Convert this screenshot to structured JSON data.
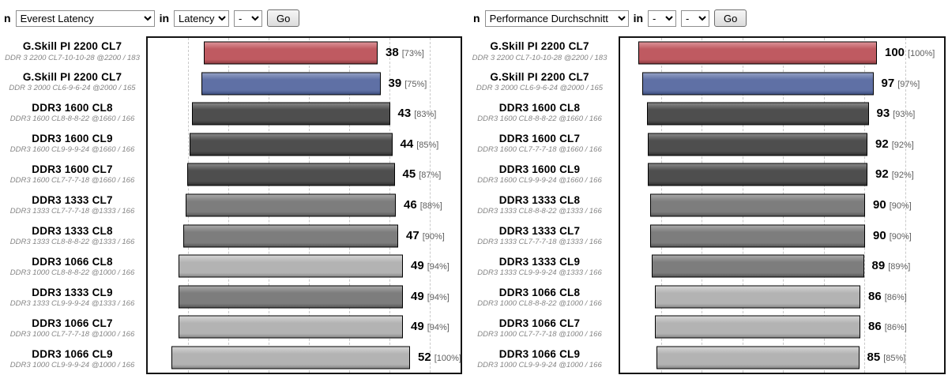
{
  "toolbars": {
    "left": {
      "prefix": "n",
      "benchmark": "Everest Latency",
      "in_label": "in",
      "filter1": "Latency",
      "filter2": "-",
      "go": "Go"
    },
    "right": {
      "prefix": "n",
      "benchmark": "Performance Durchschnitt",
      "in_label": "in",
      "filter1": "-",
      "filter2": "-",
      "go": "Go"
    }
  },
  "palette": {
    "red": [
      "#db9196",
      "#bf5a61",
      "#8c3b41"
    ],
    "blue": [
      "#93a0c4",
      "#5f70a5",
      "#3d4f80"
    ],
    "dark": [
      "#878787",
      "#4e4e4e",
      "#313131"
    ],
    "mid": [
      "#a8a8a8",
      "#7d7d7d",
      "#575757"
    ],
    "light": [
      "#d5d5d5",
      "#b3b3b3",
      "#898989"
    ]
  },
  "chart_data": [
    {
      "type": "bar",
      "title": "Everest Latency",
      "orientation": "horizontal",
      "legend": "none",
      "grid": "vertical-dashed",
      "value_format": "value [percent%]",
      "rows": [
        {
          "label": "G.Skill PI 2200 CL7",
          "sublabel": "DDR 3 2200 CL7-10-10-28 @2200 / 183",
          "value": 38,
          "percent": 73,
          "color": "red"
        },
        {
          "label": "G.Skill PI 2200 CL7",
          "sublabel": "DDR 3 2000 CL6-9-6-24 @2000 / 165",
          "value": 39,
          "percent": 75,
          "color": "blue"
        },
        {
          "label": "DDR3 1600 CL8",
          "sublabel": "DDR3 1600 CL8-8-8-22 @1660 / 166",
          "value": 43,
          "percent": 83,
          "color": "dark"
        },
        {
          "label": "DDR3 1600 CL9",
          "sublabel": "DDR3 1600 CL9-9-9-24 @1660 / 166",
          "value": 44,
          "percent": 85,
          "color": "dark"
        },
        {
          "label": "DDR3 1600 CL7",
          "sublabel": "DDR3 1600 CL7-7-7-18 @1660 / 166",
          "value": 45,
          "percent": 87,
          "color": "dark"
        },
        {
          "label": "DDR3 1333 CL7",
          "sublabel": "DDR3 1333 CL7-7-7-18 @1333 / 166",
          "value": 46,
          "percent": 88,
          "color": "mid"
        },
        {
          "label": "DDR3 1333 CL8",
          "sublabel": "DDR3 1333 CL8-8-8-22 @1333 / 166",
          "value": 47,
          "percent": 90,
          "color": "mid"
        },
        {
          "label": "DDR3 1066 CL8",
          "sublabel": "DDR3 1000 CL8-8-8-22 @1000 / 166",
          "value": 49,
          "percent": 94,
          "color": "light"
        },
        {
          "label": "DDR3 1333 CL9",
          "sublabel": "DDR3 1333 CL9-9-9-24 @1333 / 166",
          "value": 49,
          "percent": 94,
          "color": "mid"
        },
        {
          "label": "DDR3 1066 CL7",
          "sublabel": "DDR3 1000 CL7-7-7-18 @1000 / 166",
          "value": 49,
          "percent": 94,
          "color": "light"
        },
        {
          "label": "DDR3 1066 CL9",
          "sublabel": "DDR3 1000 CL9-9-9-24 @1000 / 166",
          "value": 52,
          "percent": 100,
          "color": "light"
        }
      ]
    },
    {
      "type": "bar",
      "title": "Performance Durchschnitt",
      "orientation": "horizontal",
      "legend": "none",
      "grid": "vertical-dashed",
      "value_format": "value [percent%]",
      "rows": [
        {
          "label": "G.Skill PI 2200 CL7",
          "sublabel": "DDR 3 2200 CL7-10-10-28 @2200 / 183",
          "value": 100,
          "percent": 100,
          "color": "red"
        },
        {
          "label": "G.Skill PI 2200 CL7",
          "sublabel": "DDR 3 2000 CL6-9-6-24 @2000 / 165",
          "value": 97,
          "percent": 97,
          "color": "blue"
        },
        {
          "label": "DDR3 1600 CL8",
          "sublabel": "DDR3 1600 CL8-8-8-22 @1660 / 166",
          "value": 93,
          "percent": 93,
          "color": "dark"
        },
        {
          "label": "DDR3 1600 CL7",
          "sublabel": "DDR3 1600 CL7-7-7-18 @1660 / 166",
          "value": 92,
          "percent": 92,
          "color": "dark"
        },
        {
          "label": "DDR3 1600 CL9",
          "sublabel": "DDR3 1600 CL9-9-9-24 @1660 / 166",
          "value": 92,
          "percent": 92,
          "color": "dark"
        },
        {
          "label": "DDR3 1333 CL8",
          "sublabel": "DDR3 1333 CL8-8-8-22 @1333 / 166",
          "value": 90,
          "percent": 90,
          "color": "mid"
        },
        {
          "label": "DDR3 1333 CL7",
          "sublabel": "DDR3 1333 CL7-7-7-18 @1333 / 166",
          "value": 90,
          "percent": 90,
          "color": "mid"
        },
        {
          "label": "DDR3 1333 CL9",
          "sublabel": "DDR3 1333 CL9-9-9-24 @1333 / 166",
          "value": 89,
          "percent": 89,
          "color": "mid"
        },
        {
          "label": "DDR3 1066 CL8",
          "sublabel": "DDR3 1000 CL8-8-8-22 @1000 / 166",
          "value": 86,
          "percent": 86,
          "color": "light"
        },
        {
          "label": "DDR3 1066 CL7",
          "sublabel": "DDR3 1000 CL7-7-7-18 @1000 / 166",
          "value": 86,
          "percent": 86,
          "color": "light"
        },
        {
          "label": "DDR3 1066 CL9",
          "sublabel": "DDR3 1000 CL9-9-9-24 @1000 / 166",
          "value": 85,
          "percent": 85,
          "color": "light"
        }
      ]
    }
  ]
}
